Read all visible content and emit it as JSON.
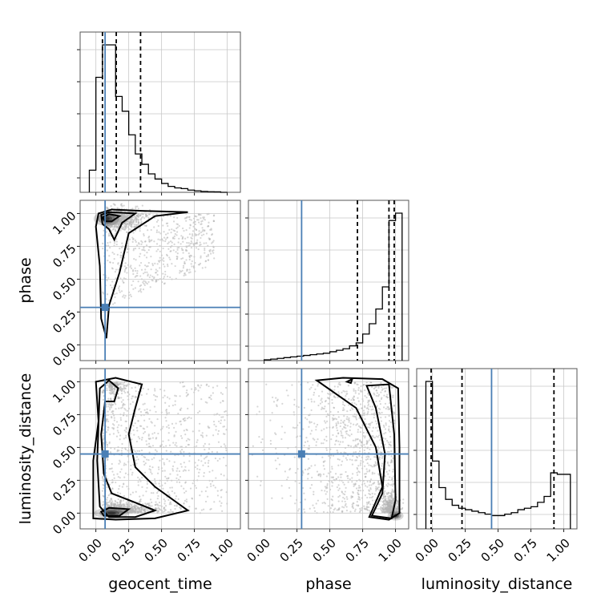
{
  "chart_data": {
    "type": "corner",
    "parameters": [
      "geocent_time",
      "phase",
      "luminosity_distance"
    ],
    "axis_range": [
      -0.12,
      1.1
    ],
    "ticks": [
      0.0,
      0.25,
      0.5,
      0.75,
      1.0
    ],
    "tick_labels": [
      "0.00",
      "0.25",
      "0.50",
      "0.75",
      "1.00"
    ],
    "truths": {
      "geocent_time": 0.07,
      "phase": 0.285,
      "luminosity_distance": 0.45
    },
    "quantiles": {
      "geocent_time": [
        0.05,
        0.155,
        0.34
      ],
      "phase": [
        0.71,
        0.95,
        0.99
      ],
      "luminosity_distance": [
        -0.01,
        0.225,
        0.925
      ]
    },
    "histograms": {
      "geocent_time": {
        "bin_edges": [
          -0.05,
          0.0,
          0.05,
          0.1,
          0.15,
          0.2,
          0.25,
          0.3,
          0.35,
          0.4,
          0.45,
          0.5,
          0.55,
          0.6,
          0.65,
          0.7,
          0.75,
          0.8,
          0.85,
          0.9,
          0.95,
          1.0
        ],
        "counts": [
          0.15,
          0.78,
          1.0,
          1.0,
          0.65,
          0.55,
          0.39,
          0.26,
          0.19,
          0.125,
          0.09,
          0.06,
          0.04,
          0.03,
          0.025,
          0.015,
          0.01,
          0.006,
          0.004,
          0.003,
          0.0
        ]
      },
      "phase": {
        "bin_edges": [
          0.0,
          0.05,
          0.1,
          0.15,
          0.2,
          0.25,
          0.3,
          0.35,
          0.4,
          0.45,
          0.5,
          0.55,
          0.6,
          0.65,
          0.7,
          0.75,
          0.8,
          0.85,
          0.9,
          0.95,
          1.0,
          1.05
        ],
        "counts": [
          0.005,
          0.01,
          0.015,
          0.02,
          0.025,
          0.03,
          0.035,
          0.04,
          0.045,
          0.05,
          0.06,
          0.07,
          0.08,
          0.1,
          0.12,
          0.18,
          0.25,
          0.35,
          0.5,
          0.95,
          1.0
        ]
      },
      "luminosity_distance": {
        "bin_edges": [
          -0.05,
          0.0,
          0.05,
          0.1,
          0.15,
          0.2,
          0.25,
          0.3,
          0.35,
          0.4,
          0.45,
          0.5,
          0.55,
          0.6,
          0.65,
          0.7,
          0.75,
          0.8,
          0.85,
          0.9,
          0.95,
          1.05
        ],
        "counts": [
          1.0,
          0.46,
          0.28,
          0.2,
          0.16,
          0.14,
          0.13,
          0.12,
          0.11,
          0.1,
          0.09,
          0.09,
          0.1,
          0.11,
          0.13,
          0.14,
          0.15,
          0.18,
          0.22,
          0.38,
          0.37
        ]
      }
    },
    "density_peaks": {
      "phase_vs_geocent_time": [
        0.08,
        0.96
      ],
      "luminosity_distance_vs_geocent_time": [
        0.08,
        0.0
      ],
      "luminosity_distance_vs_phase": [
        1.0,
        -0.02
      ]
    },
    "grid": true,
    "xlabel": [
      "geocent_time",
      "phase",
      "luminosity_distance"
    ],
    "ylabel": [
      "",
      "phase",
      "luminosity_distance"
    ]
  }
}
